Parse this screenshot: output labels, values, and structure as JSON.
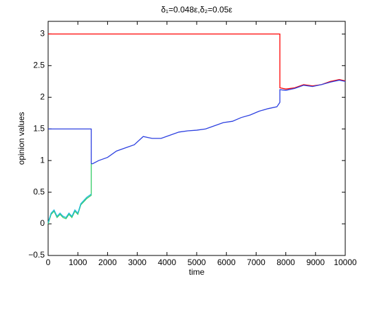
{
  "chart_data": {
    "type": "line",
    "title": "δ₁=0.048ε,δ₂=0.05ε",
    "x_label": "time",
    "y_label": "opinion values",
    "xlim": [
      0,
      10000
    ],
    "ylim": [
      -0.5,
      3.2
    ],
    "xticks": [
      0,
      1000,
      2000,
      3000,
      4000,
      5000,
      6000,
      7000,
      8000,
      9000,
      10000
    ],
    "yticks": [
      {
        "value": -0.5,
        "label": "−0.5"
      },
      0,
      0.5,
      1,
      1.5,
      2,
      2.5,
      3
    ],
    "grid": false,
    "series": [
      {
        "color": "#ff0000",
        "x": [
          0,
          7800,
          7800,
          8000,
          8300,
          8600,
          8900,
          9200,
          9500,
          9800,
          10000
        ],
        "values": [
          3,
          3,
          2.15,
          2.13,
          2.15,
          2.2,
          2.18,
          2.2,
          2.25,
          2.28,
          2.26
        ]
      },
      {
        "color": "#2b3fe0",
        "x": [
          0,
          1450,
          1450,
          1500,
          1700,
          2000,
          2300,
          2600,
          2900,
          3200,
          3500,
          3800,
          4100,
          4400,
          4700,
          5000,
          5300,
          5600,
          5900,
          6200,
          6500,
          6800,
          7100,
          7400,
          7700,
          7800,
          7800,
          8000,
          8300,
          8600,
          8900,
          9200,
          9500,
          9800,
          10000
        ],
        "values": [
          1.5,
          1.5,
          0.95,
          0.95,
          1.0,
          1.05,
          1.15,
          1.2,
          1.25,
          1.38,
          1.35,
          1.35,
          1.4,
          1.45,
          1.47,
          1.48,
          1.5,
          1.55,
          1.6,
          1.62,
          1.68,
          1.72,
          1.78,
          1.82,
          1.85,
          1.92,
          2.12,
          2.11,
          2.14,
          2.19,
          2.17,
          2.2,
          2.24,
          2.27,
          2.25
        ]
      },
      {
        "color": "#33cc66",
        "x": [
          0,
          100,
          200,
          300,
          400,
          500,
          600,
          700,
          800,
          900,
          1000,
          1100,
          1200,
          1300,
          1450,
          1450
        ],
        "values": [
          0,
          0.15,
          0.2,
          0.1,
          0.15,
          0.1,
          0.08,
          0.15,
          0.1,
          0.2,
          0.15,
          0.3,
          0.35,
          0.4,
          0.45,
          0.95
        ]
      },
      {
        "color": "#22bbdd",
        "x": [
          0,
          100,
          200,
          300,
          400,
          500,
          600,
          700,
          800,
          900,
          1000,
          1100,
          1200,
          1300,
          1450
        ],
        "values": [
          0.02,
          0.17,
          0.22,
          0.12,
          0.17,
          0.12,
          0.1,
          0.17,
          0.12,
          0.22,
          0.17,
          0.32,
          0.37,
          0.42,
          0.47
        ]
      }
    ]
  }
}
